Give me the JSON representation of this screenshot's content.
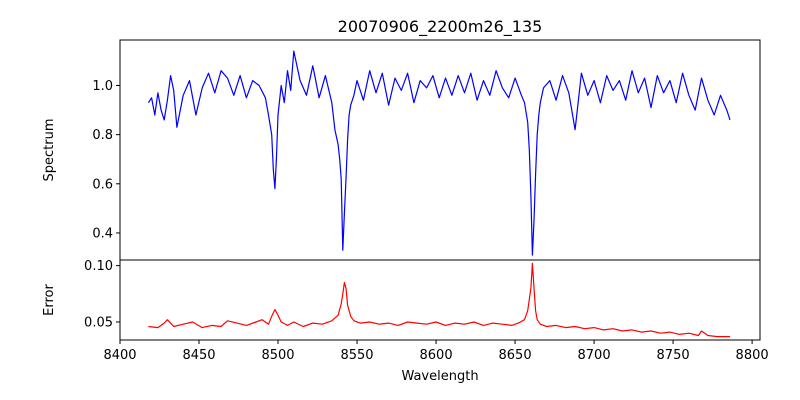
{
  "chart_data": {
    "type": "line",
    "title": "20070906_2200m26_135",
    "xlabel": "Wavelength",
    "grid": false,
    "legend": "none",
    "xlim": [
      8400,
      8805
    ],
    "xticks": [
      8400,
      8450,
      8500,
      8550,
      8600,
      8650,
      8700,
      8750,
      8800
    ],
    "panels": [
      {
        "name": "spectrum",
        "ylabel": "Spectrum",
        "ylim": [
          0.29,
          1.185
        ],
        "yticks": [
          0.4,
          0.6,
          0.8,
          1.0
        ],
        "ytick_labels": [
          "0.4",
          "0.6",
          "0.8",
          "1.0"
        ],
        "color": "#0000ff",
        "x": [
          8418,
          8420,
          8422,
          8424,
          8426,
          8428,
          8430,
          8432,
          8434,
          8436,
          8440,
          8444,
          8448,
          8452,
          8456,
          8460,
          8464,
          8468,
          8472,
          8476,
          8480,
          8484,
          8488,
          8492,
          8494,
          8496,
          8497,
          8498,
          8499,
          8500,
          8502,
          8504,
          8506,
          8508,
          8510,
          8514,
          8518,
          8522,
          8526,
          8530,
          8534,
          8536,
          8538,
          8539,
          8540,
          8541,
          8542,
          8543,
          8544,
          8545,
          8546,
          8548,
          8550,
          8554,
          8558,
          8562,
          8566,
          8570,
          8574,
          8578,
          8582,
          8586,
          8590,
          8594,
          8598,
          8602,
          8606,
          8610,
          8614,
          8618,
          8622,
          8626,
          8630,
          8634,
          8638,
          8642,
          8646,
          8650,
          8654,
          8656,
          8658,
          8659,
          8660,
          8661,
          8662,
          8663,
          8664,
          8665,
          8666,
          8668,
          8672,
          8676,
          8680,
          8684,
          8688,
          8692,
          8696,
          8700,
          8704,
          8708,
          8712,
          8716,
          8720,
          8724,
          8728,
          8732,
          8736,
          8740,
          8744,
          8748,
          8752,
          8756,
          8760,
          8764,
          8768,
          8772,
          8776,
          8780,
          8784,
          8786
        ],
        "values": [
          0.93,
          0.95,
          0.88,
          0.97,
          0.9,
          0.86,
          0.94,
          1.04,
          0.98,
          0.83,
          0.96,
          1.02,
          0.88,
          0.99,
          1.05,
          0.97,
          1.06,
          1.03,
          0.96,
          1.04,
          0.95,
          1.02,
          1.0,
          0.95,
          0.88,
          0.8,
          0.66,
          0.58,
          0.7,
          0.88,
          1.0,
          0.93,
          1.06,
          0.98,
          1.14,
          1.02,
          0.96,
          1.08,
          0.95,
          1.04,
          0.93,
          0.82,
          0.76,
          0.7,
          0.62,
          0.33,
          0.48,
          0.62,
          0.78,
          0.88,
          0.92,
          0.96,
          1.02,
          0.94,
          1.06,
          0.97,
          1.05,
          0.92,
          1.03,
          0.98,
          1.05,
          0.93,
          1.02,
          0.99,
          1.04,
          0.95,
          1.03,
          0.96,
          1.04,
          0.97,
          1.05,
          0.94,
          1.02,
          0.96,
          1.06,
          0.99,
          0.95,
          1.03,
          0.96,
          0.93,
          0.85,
          0.74,
          0.55,
          0.31,
          0.45,
          0.64,
          0.8,
          0.88,
          0.93,
          0.99,
          1.02,
          0.94,
          1.04,
          0.97,
          0.82,
          1.05,
          0.96,
          1.02,
          0.93,
          1.04,
          0.98,
          1.02,
          0.94,
          1.06,
          0.97,
          1.03,
          0.91,
          1.04,
          0.97,
          1.02,
          0.93,
          1.05,
          0.96,
          0.9,
          1.03,
          0.94,
          0.88,
          0.96,
          0.9,
          0.86
        ]
      },
      {
        "name": "error",
        "ylabel": "Error",
        "ylim": [
          0.034,
          0.105
        ],
        "yticks": [
          0.05,
          0.1
        ],
        "ytick_labels": [
          "0.05",
          "0.10"
        ],
        "color": "#ff0000",
        "x": [
          8418,
          8424,
          8428,
          8430,
          8434,
          8440,
          8446,
          8452,
          8458,
          8464,
          8468,
          8474,
          8480,
          8486,
          8490,
          8494,
          8496,
          8498,
          8500,
          8502,
          8506,
          8510,
          8516,
          8522,
          8528,
          8534,
          8538,
          8540,
          8541,
          8542,
          8543,
          8544,
          8546,
          8548,
          8552,
          8558,
          8564,
          8570,
          8576,
          8582,
          8588,
          8594,
          8600,
          8606,
          8612,
          8618,
          8624,
          8630,
          8636,
          8642,
          8648,
          8652,
          8656,
          8658,
          8660,
          8661,
          8662,
          8663,
          8664,
          8666,
          8670,
          8676,
          8682,
          8688,
          8694,
          8700,
          8706,
          8712,
          8718,
          8724,
          8730,
          8736,
          8742,
          8748,
          8754,
          8760,
          8766,
          8768,
          8772,
          8778,
          8784,
          8786
        ],
        "values": [
          0.046,
          0.045,
          0.049,
          0.052,
          0.046,
          0.048,
          0.05,
          0.045,
          0.047,
          0.046,
          0.051,
          0.049,
          0.047,
          0.05,
          0.052,
          0.048,
          0.055,
          0.061,
          0.056,
          0.05,
          0.047,
          0.05,
          0.046,
          0.049,
          0.048,
          0.051,
          0.056,
          0.066,
          0.075,
          0.085,
          0.08,
          0.065,
          0.055,
          0.051,
          0.049,
          0.05,
          0.048,
          0.049,
          0.047,
          0.05,
          0.049,
          0.048,
          0.05,
          0.047,
          0.049,
          0.048,
          0.05,
          0.047,
          0.049,
          0.048,
          0.047,
          0.049,
          0.052,
          0.06,
          0.08,
          0.102,
          0.08,
          0.06,
          0.052,
          0.048,
          0.046,
          0.047,
          0.045,
          0.046,
          0.044,
          0.045,
          0.043,
          0.044,
          0.042,
          0.043,
          0.041,
          0.042,
          0.04,
          0.041,
          0.039,
          0.04,
          0.038,
          0.042,
          0.038,
          0.037,
          0.037,
          0.037
        ]
      }
    ]
  }
}
